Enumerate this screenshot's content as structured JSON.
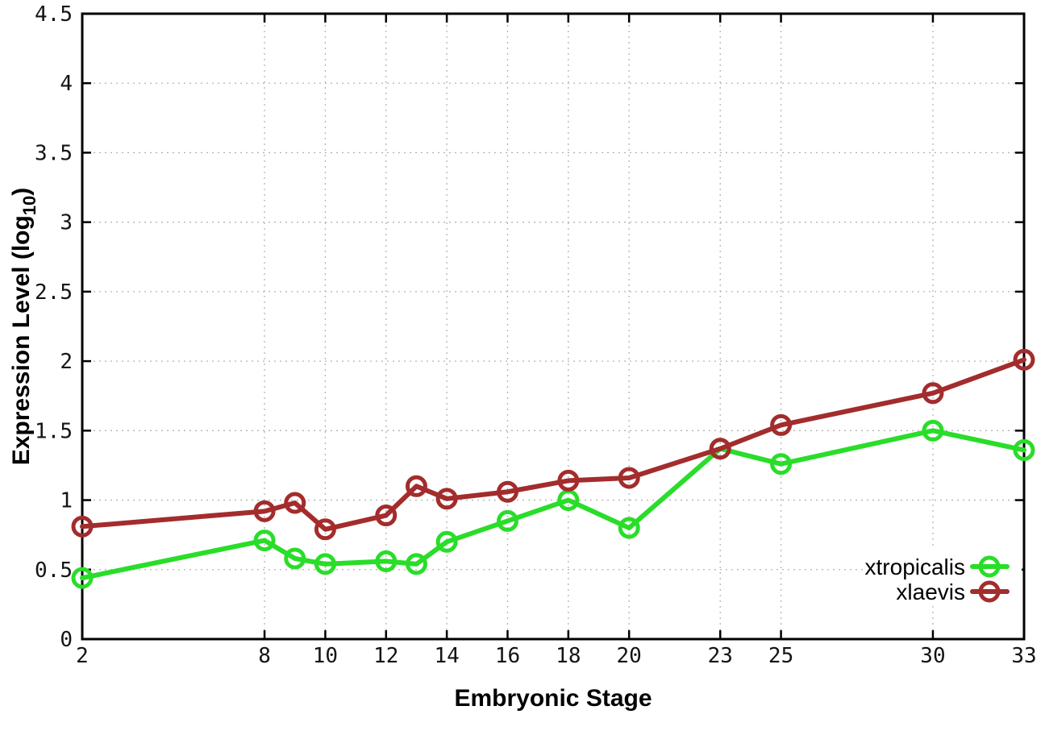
{
  "chart_data": {
    "type": "line",
    "title": "",
    "xlabel": "Embryonic Stage",
    "ylabel": "Expression Level (log10)",
    "ylabel_parts": {
      "base": "Expression Level (log",
      "sub": "10",
      "close": ")"
    },
    "x": [
      2,
      8,
      9,
      10,
      12,
      13,
      14,
      16,
      18,
      20,
      23,
      25,
      30,
      33
    ],
    "series": [
      {
        "name": "xtropicalis",
        "color": "#29dd29",
        "values": [
          0.44,
          0.71,
          0.58,
          0.54,
          0.56,
          0.54,
          0.7,
          0.85,
          1.0,
          0.8,
          1.37,
          1.26,
          1.5,
          1.36
        ]
      },
      {
        "name": "xlaevis",
        "color": "#a32c2c",
        "values": [
          0.81,
          0.92,
          0.98,
          0.79,
          0.89,
          1.1,
          1.01,
          1.06,
          1.14,
          1.16,
          1.37,
          1.54,
          1.77,
          2.01
        ]
      }
    ],
    "xlim": [
      2,
      33
    ],
    "ylim": [
      0,
      4.5
    ],
    "xticks": [
      2,
      8,
      10,
      12,
      14,
      16,
      18,
      20,
      23,
      25,
      30,
      33
    ],
    "xtick_labels": [
      "2",
      "8",
      "10",
      "12",
      "14",
      "16",
      "18",
      "20",
      "23",
      "25",
      "30",
      "33"
    ],
    "yticks": [
      0,
      0.5,
      1,
      1.5,
      2,
      2.5,
      3,
      3.5,
      4,
      4.5
    ],
    "ytick_labels": [
      "0",
      "0.5",
      "1",
      "1.5",
      "2",
      "2.5",
      "3",
      "3.5",
      "4",
      "4.5"
    ],
    "grid": true,
    "grid_color": "#b4b4b4",
    "border_color": "#000000",
    "legend_position": "inside-bottom-right",
    "marker": "open-circle"
  }
}
